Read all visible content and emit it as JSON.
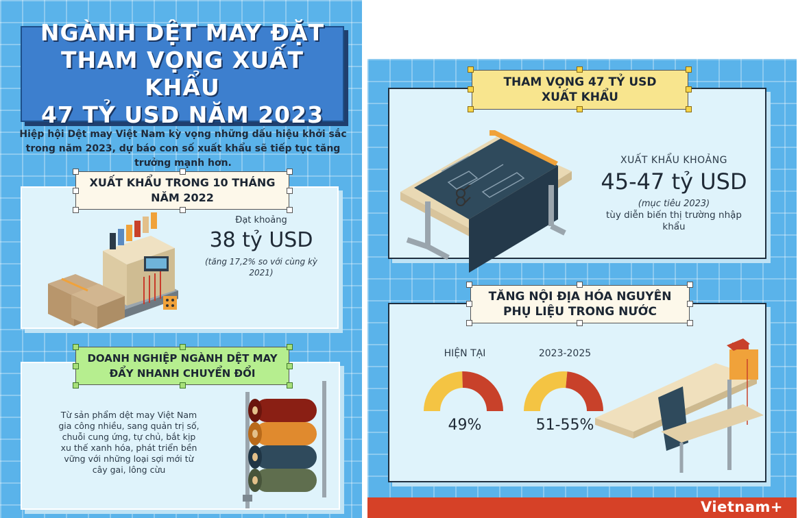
{
  "left": {
    "title": "NGÀNH DỆT MAY ĐẶT\nTHAM VỌNG XUẤT KHẨU\n47 TỶ USD NĂM 2023",
    "intro": "Hiệp hội Dệt may Việt Nam kỳ vọng những dấu hiệu khởi sắc trong năm 2023, dự báo con số xuất khẩu sẽ tiếp tục tăng trưởng mạnh hơn.",
    "section1": {
      "heading": "XUẤT KHẨU TRONG 10 THÁNG\nNĂM 2022",
      "prefix": "Đạt khoảng",
      "value": "38 tỷ USD",
      "note": "(tăng 17,2% so với cùng kỳ\n2021)"
    },
    "section2": {
      "heading": "DOANH NGHIỆP NGÀNH DỆT MAY\nĐẨY NHANH CHUYỂN ĐỔI",
      "body": "Từ sản phẩm dệt may Việt Nam\ngia công nhiều, sang quản trị số,\nchuỗi cung ứng, tự chủ, bắt kịp\nxu thế xanh hóa, phát triển bền\nvững với những loại sợi mới từ\ncây gai, lông cừu"
    }
  },
  "right": {
    "section3": {
      "heading": "THAM VỌNG 47 TỶ USD\nXUẤT KHẨU",
      "prefix": "XUẤT KHẨU KHOẢNG",
      "value": "45-47 tỷ USD",
      "note": "(mục tiêu 2023)",
      "sub": "tùy diễn biến thị trường nhập\nkhẩu"
    },
    "section4": {
      "heading": "TĂNG NỘI ĐỊA HÓA NGUYÊN\nPHỤ LIỆU TRONG NƯỚC",
      "gauges": [
        {
          "label": "HIỆN TẠI",
          "value_text": "49%",
          "fraction": 0.49
        },
        {
          "label": "2023-2025",
          "value_text": "51-55%",
          "fraction": 0.53
        }
      ]
    },
    "brand": "Vietnam+"
  },
  "colors": {
    "background": "#5ab3ea",
    "title_box": "#3d7fce",
    "gauge_filled": "#c8412a",
    "gauge_rest": "#f4c443",
    "footer": "#d64127"
  }
}
